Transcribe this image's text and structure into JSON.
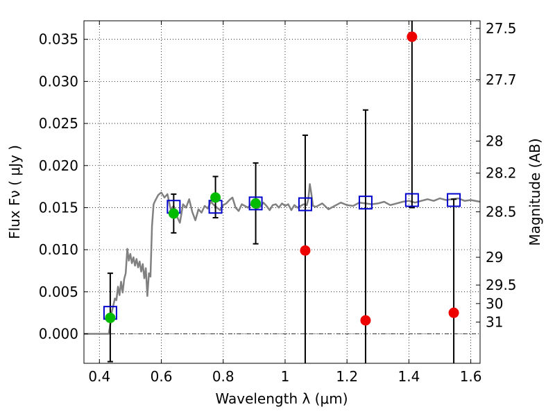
{
  "chart_data": {
    "type": "scatter",
    "xlabel": "Wavelength  λ (μm)",
    "ylabel": "Flux  Fν  ( μJy )",
    "y2label": "Magnitude (AB)",
    "xlim": [
      0.35,
      1.63
    ],
    "ylim": [
      -0.0035,
      0.0372
    ],
    "grid": true,
    "x_ticks": [
      "0.4",
      "0.6",
      "0.8",
      "1",
      "1.2",
      "1.4",
      "1.6"
    ],
    "x_tick_values": [
      0.4,
      0.6,
      0.8,
      1.0,
      1.2,
      1.4,
      1.6
    ],
    "y_ticks": [
      "0.000",
      "0.005",
      "0.010",
      "0.015",
      "0.020",
      "0.025",
      "0.030",
      "0.035"
    ],
    "y_tick_values": [
      0.0,
      0.005,
      0.01,
      0.015,
      0.02,
      0.025,
      0.03,
      0.035
    ],
    "y2_ticks": [
      {
        "label": "27.5",
        "flux": 0.0363
      },
      {
        "label": "27.7",
        "flux": 0.0302
      },
      {
        "label": "28",
        "flux": 0.0229
      },
      {
        "label": "28.2",
        "flux": 0.0191
      },
      {
        "label": "28.5",
        "flux": 0.0145
      },
      {
        "label": "29",
        "flux": 0.0091
      },
      {
        "label": "29.5",
        "flux": 0.0058
      },
      {
        "label": "30",
        "flux": 0.0036
      },
      {
        "label": "31",
        "flux": 0.0014
      }
    ],
    "template_spectrum": {
      "color": "#808080",
      "x": [
        0.35,
        0.43,
        0.437,
        0.44,
        0.445,
        0.45,
        0.455,
        0.46,
        0.465,
        0.47,
        0.475,
        0.48,
        0.485,
        0.49,
        0.495,
        0.5,
        0.505,
        0.51,
        0.515,
        0.52,
        0.525,
        0.53,
        0.535,
        0.54,
        0.545,
        0.55,
        0.555,
        0.56,
        0.565,
        0.57,
        0.575,
        0.58,
        0.59,
        0.6,
        0.61,
        0.62,
        0.63,
        0.64,
        0.65,
        0.66,
        0.67,
        0.68,
        0.69,
        0.7,
        0.71,
        0.72,
        0.73,
        0.74,
        0.75,
        0.76,
        0.77,
        0.78,
        0.79,
        0.8,
        0.81,
        0.82,
        0.83,
        0.84,
        0.85,
        0.86,
        0.87,
        0.88,
        0.89,
        0.9,
        0.91,
        0.92,
        0.93,
        0.94,
        0.95,
        0.96,
        0.97,
        0.98,
        0.99,
        1.0,
        1.01,
        1.02,
        1.03,
        1.04,
        1.05,
        1.06,
        1.07,
        1.075,
        1.08,
        1.085,
        1.09,
        1.1,
        1.12,
        1.14,
        1.16,
        1.18,
        1.2,
        1.22,
        1.24,
        1.26,
        1.28,
        1.3,
        1.32,
        1.34,
        1.36,
        1.38,
        1.4,
        1.42,
        1.44,
        1.46,
        1.48,
        1.5,
        1.52,
        1.54,
        1.56,
        1.58,
        1.6,
        1.63
      ],
      "y": [
        0.0,
        0.0,
        0.0015,
        0.0026,
        0.0034,
        0.0042,
        0.004,
        0.0056,
        0.0046,
        0.0062,
        0.0049,
        0.0065,
        0.0072,
        0.0101,
        0.0087,
        0.0095,
        0.0084,
        0.0091,
        0.0081,
        0.0089,
        0.0079,
        0.0086,
        0.0074,
        0.0083,
        0.0066,
        0.0078,
        0.0045,
        0.0072,
        0.0068,
        0.0128,
        0.0154,
        0.0158,
        0.0165,
        0.0168,
        0.0162,
        0.0166,
        0.0148,
        0.0152,
        0.014,
        0.0132,
        0.0154,
        0.015,
        0.016,
        0.0145,
        0.0135,
        0.0148,
        0.0144,
        0.0152,
        0.0149,
        0.0157,
        0.0153,
        0.015,
        0.0147,
        0.0153,
        0.0155,
        0.0159,
        0.0162,
        0.015,
        0.0146,
        0.0154,
        0.0152,
        0.015,
        0.0154,
        0.0153,
        0.0149,
        0.0151,
        0.0156,
        0.0152,
        0.0147,
        0.0153,
        0.0154,
        0.015,
        0.0155,
        0.0152,
        0.0154,
        0.0147,
        0.0153,
        0.015,
        0.0152,
        0.0154,
        0.0153,
        0.016,
        0.0178,
        0.0166,
        0.0152,
        0.0151,
        0.0155,
        0.0148,
        0.0152,
        0.0156,
        0.0153,
        0.0152,
        0.0156,
        0.0155,
        0.0154,
        0.0155,
        0.0157,
        0.0153,
        0.0155,
        0.0157,
        0.0158,
        0.0156,
        0.0158,
        0.016,
        0.0158,
        0.0161,
        0.0159,
        0.016,
        0.0161,
        0.0158,
        0.0159,
        0.0157
      ]
    },
    "series": [
      {
        "marker": "open-square",
        "color": "#0000cc",
        "points": [
          [
            0.435,
            0.0025
          ],
          [
            0.64,
            0.0151
          ],
          [
            0.775,
            0.0151
          ],
          [
            0.905,
            0.0155
          ],
          [
            1.065,
            0.0154
          ],
          [
            1.26,
            0.0156
          ],
          [
            1.41,
            0.0159
          ],
          [
            1.545,
            0.0159
          ]
        ]
      },
      {
        "marker": "filled-circle",
        "color": "#00bb00",
        "points": [
          [
            0.435,
            0.0019,
            -0.0033,
            0.0072
          ],
          [
            0.64,
            0.0143,
            0.012,
            0.0166
          ],
          [
            0.775,
            0.0162,
            0.0138,
            0.0187
          ],
          [
            0.905,
            0.0155,
            0.0107,
            0.0203
          ]
        ]
      },
      {
        "marker": "filled-circle",
        "color": "#ee0000",
        "points": [
          [
            1.065,
            0.0099,
            -0.0035,
            0.0236
          ],
          [
            1.26,
            0.0016,
            -0.0035,
            0.0266
          ],
          [
            1.41,
            0.0353,
            0.015,
            0.0372
          ],
          [
            1.545,
            0.0025,
            -0.0035,
            0.016
          ]
        ]
      }
    ]
  }
}
